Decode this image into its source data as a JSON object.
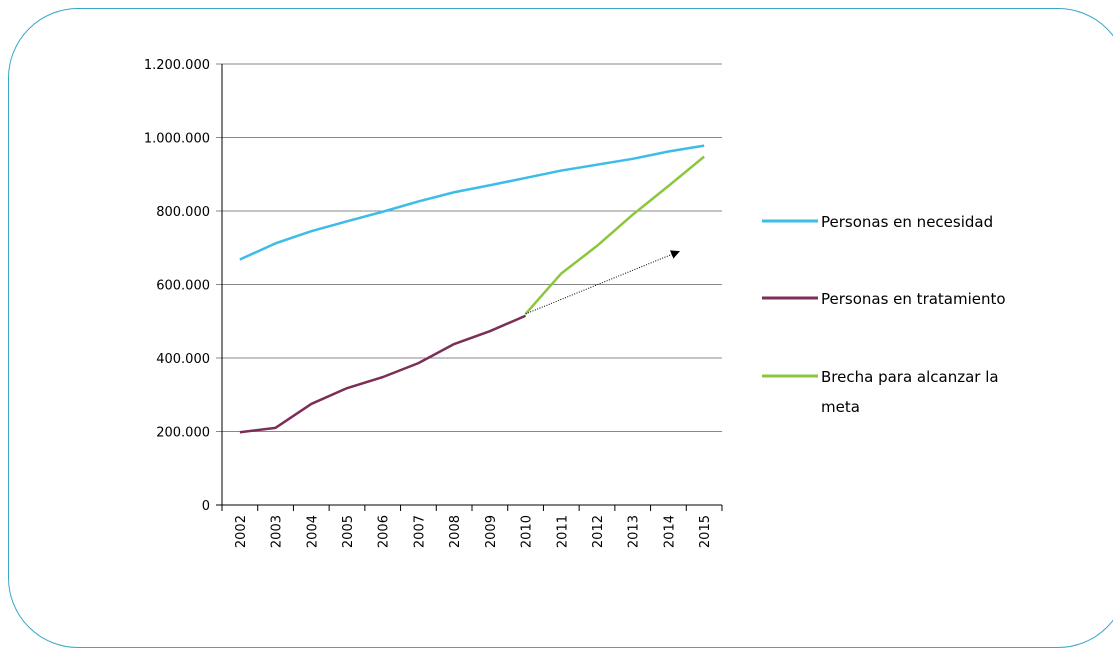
{
  "chart_data": {
    "type": "line",
    "x": [
      "2002",
      "2003",
      "2004",
      "2005",
      "2006",
      "2007",
      "2008",
      "2009",
      "2010",
      "2011",
      "2012",
      "2013",
      "2014",
      "2015"
    ],
    "y_ticks": [
      "0",
      "200.000",
      "400.000",
      "600.000",
      "800.000",
      "1.000.000",
      "1.200.000"
    ],
    "ylim": [
      0,
      1200000
    ],
    "grid": true,
    "legend_position": "right",
    "series": [
      {
        "name": "Personas en necesidad",
        "color": "#3cbce8",
        "values": [
          668000,
          712000,
          745000,
          772000,
          798000,
          826000,
          851000,
          870000,
          890000,
          910000,
          926000,
          942000,
          962000,
          978000
        ]
      },
      {
        "name": "Personas en tratamiento",
        "color": "#7b2f57",
        "values": [
          198000,
          210000,
          275000,
          318000,
          348000,
          386000,
          438000,
          473000,
          515000,
          null,
          null,
          null,
          null,
          null
        ]
      },
      {
        "name": "Brecha para alcanzar la meta",
        "label_lines": [
          "Brecha para alcanzar la",
          "meta"
        ],
        "color": "#8cc63f",
        "values": [
          null,
          null,
          null,
          null,
          null,
          null,
          null,
          null,
          520000,
          630000,
          705000,
          790000,
          868000,
          948000
        ]
      }
    ],
    "annotation": {
      "type": "arrow",
      "from": {
        "x": "2010",
        "y": 520000
      },
      "to": {
        "x": "2014.3",
        "y": 690000
      }
    }
  }
}
